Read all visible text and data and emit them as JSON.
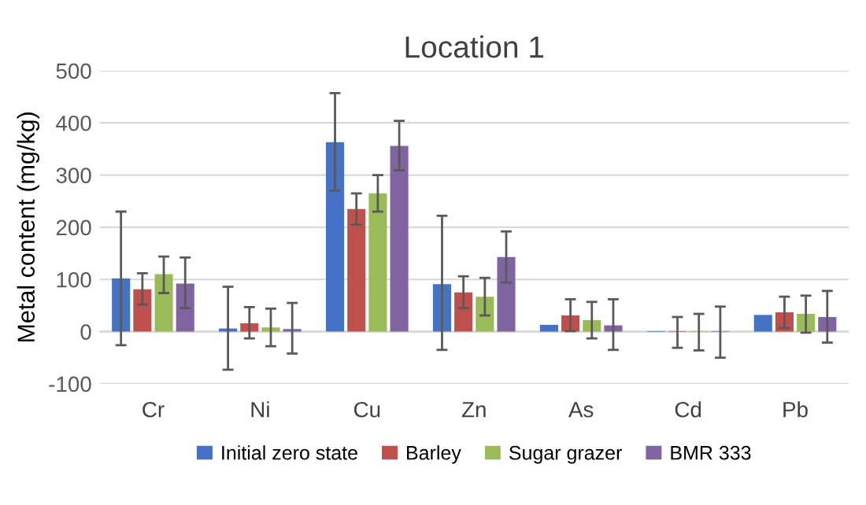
{
  "chart_data": {
    "type": "bar",
    "title": "Location 1",
    "ylabel": "Metal content (mg/kg)",
    "categories": [
      "Cr",
      "Ni",
      "Cu",
      "Zn",
      "As",
      "Cd",
      "Pb"
    ],
    "series": [
      {
        "name": "Initial zero state",
        "color": "#4472c4",
        "values": [
          102,
          6,
          363,
          91,
          13,
          1,
          32
        ],
        "errors": [
          [
            -26,
            230
          ],
          [
            -73,
            86
          ],
          [
            270,
            457
          ],
          [
            -35,
            222
          ],
          null,
          null,
          null
        ]
      },
      {
        "name": "Barley",
        "color": "#c0504d",
        "values": [
          81,
          16,
          235,
          75,
          31,
          1,
          37
        ],
        "errors": [
          [
            52,
            112
          ],
          [
            -13,
            47
          ],
          [
            205,
            265
          ],
          [
            45,
            106
          ],
          [
            1,
            62
          ],
          [
            -31,
            28
          ],
          [
            7,
            67
          ]
        ]
      },
      {
        "name": "Sugar grazer",
        "color": "#9bbb59",
        "values": [
          110,
          8,
          265,
          67,
          22,
          1,
          34
        ],
        "errors": [
          [
            74,
            144
          ],
          [
            -28,
            44
          ],
          [
            230,
            300
          ],
          [
            31,
            103
          ],
          [
            -13,
            57
          ],
          [
            -36,
            34
          ],
          [
            -2,
            69
          ]
        ]
      },
      {
        "name": "BMR 333",
        "color": "#8064a2",
        "values": [
          92,
          5,
          356,
          143,
          12,
          1,
          28
        ],
        "errors": [
          [
            45,
            142
          ],
          [
            -42,
            55
          ],
          [
            309,
            404
          ],
          [
            94,
            192
          ],
          [
            -35,
            62
          ],
          [
            -50,
            48
          ],
          [
            -21,
            78
          ]
        ]
      }
    ],
    "ylim": [
      -100,
      500
    ],
    "yticks": [
      -100,
      0,
      100,
      200,
      300,
      400,
      500
    ],
    "grid": "y",
    "legend": "bottom"
  }
}
